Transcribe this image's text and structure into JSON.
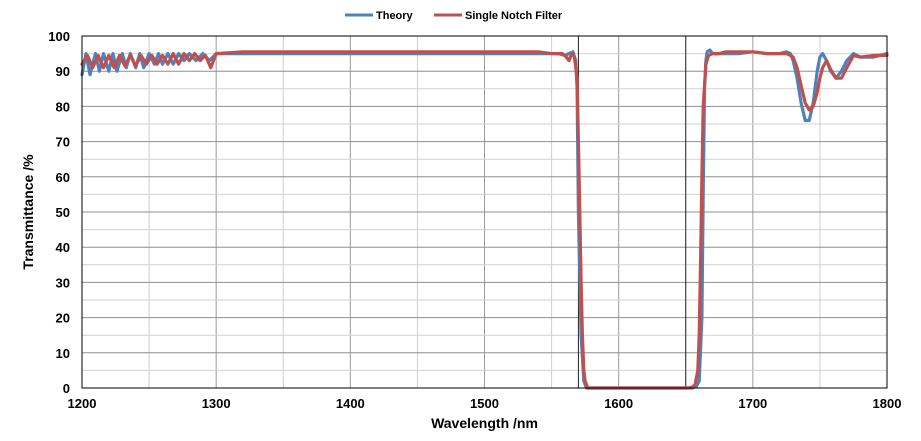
{
  "chart_data": {
    "type": "line",
    "title": "",
    "xlabel": "Wavelength /nm",
    "ylabel": "Transmittance /%",
    "xlim": [
      1200,
      1800
    ],
    "ylim": [
      0,
      100
    ],
    "x_ticks": [
      1200,
      1300,
      1400,
      1500,
      1600,
      1700,
      1800
    ],
    "y_ticks": [
      0,
      10,
      20,
      30,
      40,
      50,
      60,
      70,
      80,
      90,
      100
    ],
    "grid": true,
    "legend_position": "top-center",
    "series": [
      {
        "name": "Theory",
        "color": "#4F81BD",
        "x": [
          1200,
          1203,
          1206,
          1210,
          1213,
          1216,
          1220,
          1223,
          1226,
          1230,
          1233,
          1236,
          1240,
          1243,
          1246,
          1250,
          1254,
          1257,
          1260,
          1264,
          1268,
          1272,
          1276,
          1280,
          1285,
          1290,
          1295,
          1300,
          1320,
          1350,
          1380,
          1400,
          1420,
          1450,
          1480,
          1500,
          1520,
          1540,
          1555,
          1560,
          1563,
          1566,
          1568,
          1569,
          1570,
          1572,
          1574,
          1576,
          1580,
          1600,
          1620,
          1640,
          1650,
          1655,
          1658,
          1660,
          1662,
          1663,
          1664,
          1665,
          1666,
          1668,
          1670,
          1675,
          1680,
          1690,
          1700,
          1710,
          1720,
          1725,
          1728,
          1730,
          1733,
          1736,
          1739,
          1742,
          1745,
          1748,
          1750,
          1752,
          1755,
          1758,
          1762,
          1766,
          1770,
          1775,
          1780,
          1790,
          1800
        ],
        "y": [
          89,
          95,
          89,
          95,
          90,
          95,
          90,
          95,
          90,
          95,
          91,
          95,
          91,
          95,
          91,
          95,
          92,
          95,
          92,
          95,
          92,
          95,
          93,
          95,
          93,
          95,
          93,
          95,
          95,
          95,
          95,
          95,
          95,
          95,
          95,
          95,
          95,
          95,
          95,
          94.5,
          95,
          95.5,
          93,
          85,
          50,
          15,
          2,
          0,
          0,
          0,
          0,
          0,
          0,
          0,
          0.5,
          2,
          20,
          55,
          85,
          93,
          95.5,
          96,
          95,
          95,
          95,
          95,
          95.5,
          95,
          95,
          95.5,
          95,
          93,
          88,
          81,
          76,
          76,
          81,
          90,
          94,
          95,
          93,
          90,
          88,
          90,
          93,
          95,
          94,
          94,
          95
        ]
      },
      {
        "name": "Single Notch Filter",
        "color": "#C0504D",
        "x": [
          1200,
          1204,
          1208,
          1212,
          1216,
          1220,
          1224,
          1228,
          1232,
          1236,
          1240,
          1244,
          1248,
          1252,
          1256,
          1260,
          1264,
          1268,
          1272,
          1276,
          1280,
          1284,
          1288,
          1292,
          1296,
          1300,
          1320,
          1350,
          1380,
          1400,
          1420,
          1450,
          1480,
          1500,
          1520,
          1540,
          1550,
          1555,
          1558,
          1561,
          1563,
          1565,
          1567,
          1569,
          1570,
          1571,
          1572,
          1573,
          1574,
          1575,
          1577,
          1580,
          1600,
          1620,
          1640,
          1652,
          1655,
          1657,
          1659,
          1660,
          1661,
          1662,
          1663,
          1665,
          1667,
          1670,
          1675,
          1680,
          1690,
          1700,
          1710,
          1720,
          1725,
          1728,
          1730,
          1733,
          1736,
          1739,
          1742,
          1745,
          1748,
          1750,
          1752,
          1755,
          1758,
          1762,
          1766,
          1770,
          1775,
          1780,
          1790,
          1800
        ],
        "y": [
          92,
          94.5,
          91,
          94.5,
          91,
          94.5,
          91,
          94.5,
          91.5,
          94.5,
          91.5,
          94.5,
          92,
          94.5,
          92,
          94.5,
          92,
          95,
          92,
          95,
          93,
          95,
          93,
          94.5,
          91,
          95,
          95.5,
          95.5,
          95.5,
          95.5,
          95.5,
          95.5,
          95.5,
          95.5,
          95.5,
          95.5,
          95,
          95,
          95,
          94,
          93,
          95,
          94,
          88,
          70,
          50,
          30,
          15,
          5,
          2,
          0,
          0,
          0,
          0,
          0,
          0,
          0.3,
          1,
          5,
          15,
          35,
          60,
          80,
          92,
          94.5,
          95,
          95,
          95.5,
          95.5,
          95.5,
          95,
          95,
          95,
          94.5,
          94,
          91,
          86,
          81,
          79,
          80,
          84,
          88,
          91,
          93,
          90.5,
          88,
          88,
          91,
          94.5,
          94,
          94.5,
          94.5
        ]
      }
    ]
  }
}
